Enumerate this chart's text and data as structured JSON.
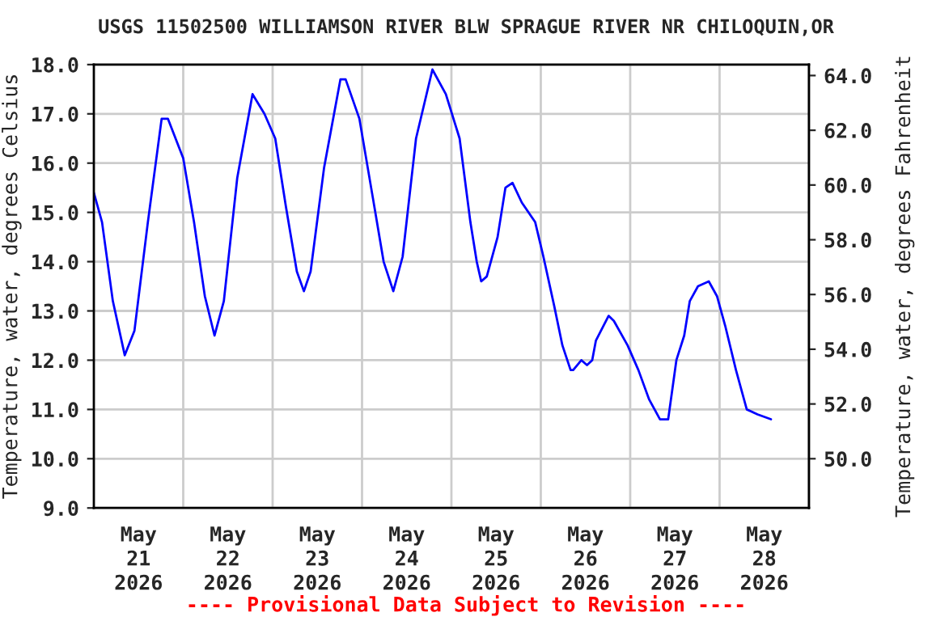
{
  "chart_data": {
    "type": "line",
    "title": "USGS 11502500 WILLIAMSON RIVER BLW SPRAGUE RIVER NR CHILOQUIN,OR",
    "ylabel": "Temperature, water, degrees Celsius",
    "y2label": "Temperature, water, degrees Fahrenheit",
    "annotations": [
      "---- Provisional Data Subject to Revision ----"
    ],
    "x": [
      "2026-05-20T12:00",
      "2026-05-20T14:12",
      "2026-05-20T17:06",
      "2026-05-20T20:18",
      "2026-05-20T22:54",
      "2026-05-21T02:30",
      "2026-05-21T06:12",
      "2026-05-21T07:54",
      "2026-05-21T12:00",
      "2026-05-21T14:54",
      "2026-05-21T17:48",
      "2026-05-21T20:24",
      "2026-05-21T22:54",
      "2026-05-22T02:30",
      "2026-05-22T06:36",
      "2026-05-22T09:48",
      "2026-05-22T12:42",
      "2026-05-22T15:36",
      "2026-05-22T18:30",
      "2026-05-22T20:24",
      "2026-05-22T22:12",
      "2026-05-23T01:48",
      "2026-05-23T06:12",
      "2026-05-23T07:36",
      "2026-05-23T11:18",
      "2026-05-23T14:54",
      "2026-05-23T17:48",
      "2026-05-23T20:24",
      "2026-05-23T22:54",
      "2026-05-24T02:30",
      "2026-05-24T06:54",
      "2026-05-24T10:30",
      "2026-05-24T14:12",
      "2026-05-24T17:06",
      "2026-05-24T18:48",
      "2026-05-24T20:00",
      "2026-05-24T21:30",
      "2026-05-25T00:24",
      "2026-05-25T02:30",
      "2026-05-25T04:24",
      "2026-05-25T06:54",
      "2026-05-25T10:30",
      "2026-05-25T12:42",
      "2026-05-25T15:36",
      "2026-05-25T17:48",
      "2026-05-25T20:00",
      "2026-05-25T20:42",
      "2026-05-25T22:54",
      "2026-05-26T00:24",
      "2026-05-26T01:48",
      "2026-05-26T02:48",
      "2026-05-26T06:12",
      "2026-05-26T07:36",
      "2026-05-26T11:18",
      "2026-05-26T14:12",
      "2026-05-26T17:06",
      "2026-05-26T20:00",
      "2026-05-26T22:12",
      "2026-05-27T00:24",
      "2026-05-27T02:30",
      "2026-05-27T04:00",
      "2026-05-27T06:12",
      "2026-05-27T09:06",
      "2026-05-27T11:18",
      "2026-05-27T13:30",
      "2026-05-27T16:24",
      "2026-05-27T19:18",
      "2026-05-27T22:12",
      "2026-05-28T01:48"
    ],
    "series": [
      {
        "color": "#0000ff",
        "values": [
          15.4,
          14.8,
          13.2,
          12.1,
          12.6,
          14.8,
          16.9,
          16.9,
          16.1,
          14.8,
          13.3,
          12.5,
          13.2,
          15.7,
          17.4,
          17.0,
          16.5,
          15.1,
          13.8,
          13.4,
          13.8,
          15.9,
          17.7,
          17.7,
          16.9,
          15.3,
          14.0,
          13.4,
          14.1,
          16.5,
          17.9,
          17.4,
          16.5,
          14.8,
          14.0,
          13.6,
          13.7,
          14.5,
          15.5,
          15.6,
          15.2,
          14.8,
          14.1,
          13.1,
          12.3,
          11.8,
          11.8,
          12.0,
          11.9,
          12.0,
          12.4,
          12.9,
          12.8,
          12.3,
          11.8,
          11.2,
          10.8,
          10.8,
          12.0,
          12.5,
          13.2,
          13.5,
          13.6,
          13.3,
          12.7,
          11.8,
          11.0,
          10.9,
          10.8
        ]
      }
    ],
    "xlim": [
      "2026-05-20T12:00",
      "2026-05-28T12:00"
    ],
    "xticks": [
      {
        "value": "2026-05-21T00:00",
        "label": "May\n21\n2026"
      },
      {
        "value": "2026-05-21T12:00",
        "label": null
      },
      {
        "value": "2026-05-22T00:00",
        "label": "May\n22\n2026"
      },
      {
        "value": "2026-05-22T12:00",
        "label": null
      },
      {
        "value": "2026-05-23T00:00",
        "label": "May\n23\n2026"
      },
      {
        "value": "2026-05-23T12:00",
        "label": null
      },
      {
        "value": "2026-05-24T00:00",
        "label": "May\n24\n2026"
      },
      {
        "value": "2026-05-24T12:00",
        "label": null
      },
      {
        "value": "2026-05-25T00:00",
        "label": "May\n25\n2026"
      },
      {
        "value": "2026-05-25T12:00",
        "label": null
      },
      {
        "value": "2026-05-26T00:00",
        "label": "May\n26\n2026"
      },
      {
        "value": "2026-05-26T12:00",
        "label": null
      },
      {
        "value": "2026-05-27T00:00",
        "label": "May\n27\n2026"
      },
      {
        "value": "2026-05-27T12:00",
        "label": null
      },
      {
        "value": "2026-05-28T00:00",
        "label": "May\n28\n2026"
      }
    ],
    "ylim": [
      9,
      18
    ],
    "yticks": [
      {
        "value": 9,
        "label": "9.0"
      },
      {
        "value": 10,
        "label": "10.0"
      },
      {
        "value": 11,
        "label": "11.0"
      },
      {
        "value": 12,
        "label": "12.0"
      },
      {
        "value": 13,
        "label": "13.0"
      },
      {
        "value": 14,
        "label": "14.0"
      },
      {
        "value": 15,
        "label": "15.0"
      },
      {
        "value": 16,
        "label": "16.0"
      },
      {
        "value": 17,
        "label": "17.0"
      },
      {
        "value": 18,
        "label": "18.0"
      }
    ],
    "y2lim": [
      48.2,
      64.4
    ],
    "y2ticks": [
      {
        "value": 50,
        "label": "50.0"
      },
      {
        "value": 52,
        "label": "52.0"
      },
      {
        "value": 54,
        "label": "54.0"
      },
      {
        "value": 56,
        "label": "56.0"
      },
      {
        "value": 58,
        "label": "58.0"
      },
      {
        "value": 60,
        "label": "60.0"
      },
      {
        "value": 62,
        "label": "62.0"
      },
      {
        "value": 64,
        "label": "64.0"
      }
    ],
    "grid": true
  }
}
